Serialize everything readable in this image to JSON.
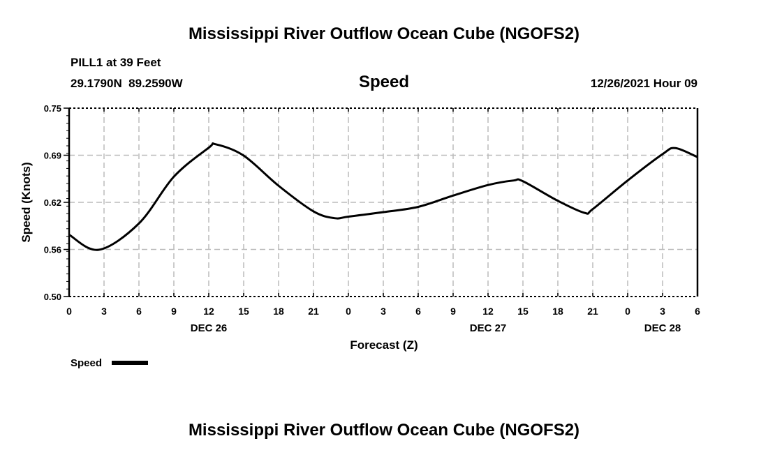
{
  "header": {
    "title": "Mississippi River Outflow Ocean Cube (NGOFS2)",
    "station": "PILL1 at 39 Feet",
    "coords": "29.1790N  89.2590W",
    "variable": "Speed",
    "datetime": "12/26/2021 Hour 09"
  },
  "footer": {
    "title": "Mississippi River Outflow Ocean Cube (NGOFS2)"
  },
  "chart_data": {
    "type": "line",
    "title": "Speed",
    "xlabel": "Forecast (Z)",
    "ylabel": "Speed (Knots)",
    "xlim": [
      0,
      54
    ],
    "ylim": [
      0.5,
      0.75
    ],
    "grid": true,
    "x_ticks": [
      0,
      3,
      6,
      9,
      12,
      15,
      18,
      21,
      24,
      27,
      30,
      33,
      36,
      39,
      42,
      45,
      48,
      51,
      54
    ],
    "x_tick_labels": [
      "0",
      "3",
      "6",
      "9",
      "12",
      "15",
      "18",
      "21",
      "0",
      "3",
      "6",
      "9",
      "12",
      "15",
      "18",
      "21",
      "0",
      "3",
      "6"
    ],
    "date_labels": [
      {
        "hour": 12,
        "label": "DEC 26"
      },
      {
        "hour": 36,
        "label": "DEC 27"
      },
      {
        "hour": 51,
        "label": "DEC 28"
      }
    ],
    "y_ticks": [
      0.5,
      0.5625,
      0.625,
      0.6875,
      0.75
    ],
    "y_tick_labels": [
      "0.50",
      "0.56",
      "0.62",
      "0.69",
      "0.75"
    ],
    "legend": {
      "position": "bottom-left",
      "label": "Speed"
    },
    "series": [
      {
        "name": "Speed",
        "color": "#000000",
        "x": [
          0,
          2.55,
          6,
          9,
          12,
          12.6,
          15,
          18,
          21,
          22.8,
          24,
          27,
          30,
          33,
          36,
          38.2,
          39,
          42,
          44.3,
          45,
          48,
          51,
          52.1,
          54
        ],
        "y": [
          0.582,
          0.562,
          0.597,
          0.659,
          0.6975,
          0.702,
          0.687,
          0.647,
          0.613,
          0.604,
          0.606,
          0.612,
          0.619,
          0.634,
          0.648,
          0.654,
          0.653,
          0.627,
          0.611,
          0.616,
          0.654,
          0.689,
          0.697,
          0.685
        ]
      }
    ]
  }
}
